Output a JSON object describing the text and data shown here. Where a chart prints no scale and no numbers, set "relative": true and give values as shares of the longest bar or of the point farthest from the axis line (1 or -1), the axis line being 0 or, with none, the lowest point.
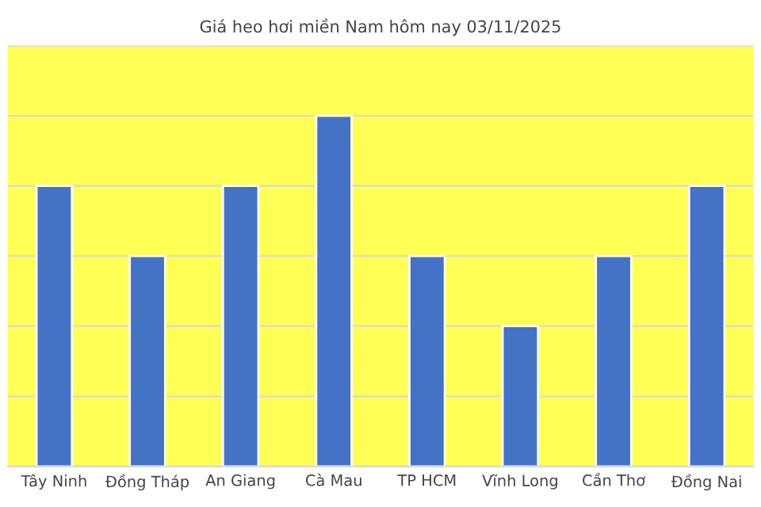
{
  "chart_data": {
    "type": "bar",
    "title": "Giá heo hơi miền Nam hôm nay 03/11/2025",
    "categories": [
      "Tây Ninh",
      "Đồng Tháp",
      "An Giang",
      "Cà Mau",
      "TP HCM",
      "Vĩnh Long",
      "Cần Thơ",
      "Đồng Nai"
    ],
    "values": [
      0.8,
      0.6,
      0.8,
      1,
      0.6,
      0.4,
      0.6,
      0.8
    ],
    "color": "#4472c4",
    "relative": true,
    "grid": "y",
    "legend": false
  }
}
